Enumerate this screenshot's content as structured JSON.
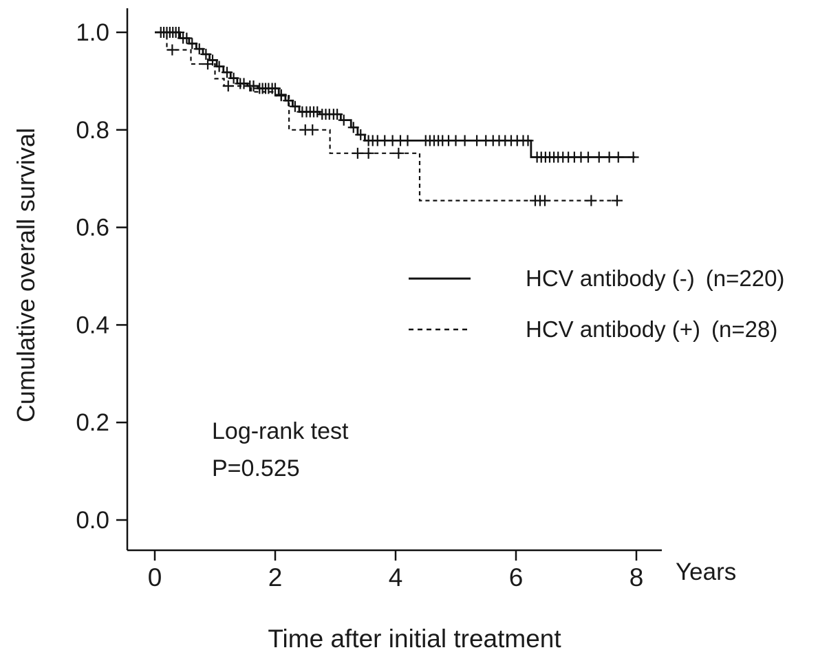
{
  "figure": {
    "background": "#ffffff",
    "line_color": "#111111",
    "text_color": "#1a1a1a"
  },
  "chart_data": {
    "type": "line",
    "subtype": "kaplan_meier_step",
    "title": "",
    "xlabel": "Time after initial treatment",
    "x_unit_label": "Years",
    "ylabel": "Cumulative overall survival",
    "xlim": [
      0,
      8
    ],
    "ylim": [
      0.0,
      1.0
    ],
    "grid": false,
    "legend_position": "center-right-inside",
    "xticks": [
      {
        "value": 0,
        "label": "0"
      },
      {
        "value": 2,
        "label": "2"
      },
      {
        "value": 4,
        "label": "4"
      },
      {
        "value": 6,
        "label": "6"
      },
      {
        "value": 8,
        "label": "8"
      }
    ],
    "yticks": [
      {
        "value": 0.0,
        "label": "0.0"
      },
      {
        "value": 0.2,
        "label": "0.2"
      },
      {
        "value": 0.4,
        "label": "0.4"
      },
      {
        "value": 0.6,
        "label": "0.6"
      },
      {
        "value": 0.8,
        "label": "0.8"
      },
      {
        "value": 1.0,
        "label": "1.0"
      }
    ],
    "annotation": {
      "line1": "Log-rank test",
      "line2": "P=0.525"
    },
    "series": [
      {
        "id": "hcv-negative",
        "name": "HCV antibody (-)",
        "n_label": "(n=220)",
        "n": 220,
        "style": "solid",
        "points": [
          [
            0,
            1.0
          ],
          [
            0.42,
            0.988
          ],
          [
            0.57,
            0.977
          ],
          [
            0.69,
            0.966
          ],
          [
            0.8,
            0.955
          ],
          [
            0.91,
            0.943
          ],
          [
            1.03,
            0.93
          ],
          [
            1.14,
            0.918
          ],
          [
            1.26,
            0.906
          ],
          [
            1.37,
            0.895
          ],
          [
            1.54,
            0.89
          ],
          [
            1.71,
            0.885
          ],
          [
            2.06,
            0.872
          ],
          [
            2.17,
            0.86
          ],
          [
            2.29,
            0.848
          ],
          [
            2.4,
            0.837
          ],
          [
            2.74,
            0.832
          ],
          [
            3.09,
            0.82
          ],
          [
            3.26,
            0.805
          ],
          [
            3.37,
            0.79
          ],
          [
            3.49,
            0.778
          ],
          [
            6.25,
            0.744
          ],
          [
            7.98,
            0.744
          ]
        ],
        "censors": [
          [
            0.1,
            1.0
          ],
          [
            0.15,
            1.0
          ],
          [
            0.2,
            1.0
          ],
          [
            0.25,
            1.0
          ],
          [
            0.3,
            1.0
          ],
          [
            0.35,
            1.0
          ],
          [
            0.4,
            1.0
          ],
          [
            0.47,
            0.988
          ],
          [
            0.53,
            0.988
          ],
          [
            0.62,
            0.977
          ],
          [
            0.74,
            0.966
          ],
          [
            0.85,
            0.955
          ],
          [
            0.96,
            0.943
          ],
          [
            1.07,
            0.93
          ],
          [
            1.2,
            0.918
          ],
          [
            1.31,
            0.906
          ],
          [
            1.42,
            0.895
          ],
          [
            1.48,
            0.895
          ],
          [
            1.58,
            0.89
          ],
          [
            1.64,
            0.89
          ],
          [
            1.74,
            0.885
          ],
          [
            1.79,
            0.885
          ],
          [
            1.84,
            0.885
          ],
          [
            1.89,
            0.885
          ],
          [
            1.95,
            0.885
          ],
          [
            2.0,
            0.885
          ],
          [
            2.1,
            0.872
          ],
          [
            2.22,
            0.86
          ],
          [
            2.33,
            0.848
          ],
          [
            2.45,
            0.837
          ],
          [
            2.52,
            0.837
          ],
          [
            2.58,
            0.837
          ],
          [
            2.64,
            0.837
          ],
          [
            2.7,
            0.837
          ],
          [
            2.78,
            0.832
          ],
          [
            2.84,
            0.832
          ],
          [
            2.9,
            0.832
          ],
          [
            2.97,
            0.832
          ],
          [
            3.03,
            0.832
          ],
          [
            3.14,
            0.82
          ],
          [
            3.3,
            0.805
          ],
          [
            3.42,
            0.79
          ],
          [
            3.55,
            0.778
          ],
          [
            3.62,
            0.778
          ],
          [
            3.7,
            0.778
          ],
          [
            3.82,
            0.778
          ],
          [
            3.95,
            0.778
          ],
          [
            4.08,
            0.778
          ],
          [
            4.2,
            0.778
          ],
          [
            4.5,
            0.778
          ],
          [
            4.57,
            0.778
          ],
          [
            4.64,
            0.778
          ],
          [
            4.71,
            0.778
          ],
          [
            4.78,
            0.778
          ],
          [
            4.88,
            0.778
          ],
          [
            5.0,
            0.778
          ],
          [
            5.15,
            0.778
          ],
          [
            5.35,
            0.778
          ],
          [
            5.5,
            0.778
          ],
          [
            5.62,
            0.778
          ],
          [
            5.72,
            0.778
          ],
          [
            5.82,
            0.778
          ],
          [
            5.92,
            0.778
          ],
          [
            6.02,
            0.778
          ],
          [
            6.12,
            0.778
          ],
          [
            6.2,
            0.778
          ],
          [
            6.35,
            0.744
          ],
          [
            6.42,
            0.744
          ],
          [
            6.49,
            0.744
          ],
          [
            6.56,
            0.744
          ],
          [
            6.63,
            0.744
          ],
          [
            6.7,
            0.744
          ],
          [
            6.78,
            0.744
          ],
          [
            6.87,
            0.744
          ],
          [
            6.97,
            0.744
          ],
          [
            7.08,
            0.744
          ],
          [
            7.2,
            0.744
          ],
          [
            7.38,
            0.744
          ],
          [
            7.55,
            0.744
          ],
          [
            7.7,
            0.744
          ],
          [
            7.95,
            0.744
          ]
        ]
      },
      {
        "id": "hcv-positive",
        "name": "HCV antibody (+)",
        "n_label": "(n=28)",
        "n": 28,
        "style": "dashed",
        "points": [
          [
            0,
            1.0
          ],
          [
            0.2,
            0.964
          ],
          [
            0.6,
            0.935
          ],
          [
            1.0,
            0.905
          ],
          [
            1.15,
            0.89
          ],
          [
            1.6,
            0.878
          ],
          [
            2.0,
            0.87
          ],
          [
            2.23,
            0.8
          ],
          [
            2.91,
            0.752
          ],
          [
            4.4,
            0.655
          ],
          [
            7.7,
            0.655
          ]
        ],
        "censors": [
          [
            0.29,
            0.964
          ],
          [
            0.88,
            0.935
          ],
          [
            1.22,
            0.89
          ],
          [
            2.1,
            0.87
          ],
          [
            2.5,
            0.8
          ],
          [
            2.62,
            0.8
          ],
          [
            3.37,
            0.752
          ],
          [
            3.55,
            0.752
          ],
          [
            4.05,
            0.752
          ],
          [
            6.32,
            0.655
          ],
          [
            6.4,
            0.655
          ],
          [
            6.48,
            0.655
          ],
          [
            7.25,
            0.655
          ],
          [
            7.68,
            0.655
          ]
        ]
      }
    ]
  }
}
